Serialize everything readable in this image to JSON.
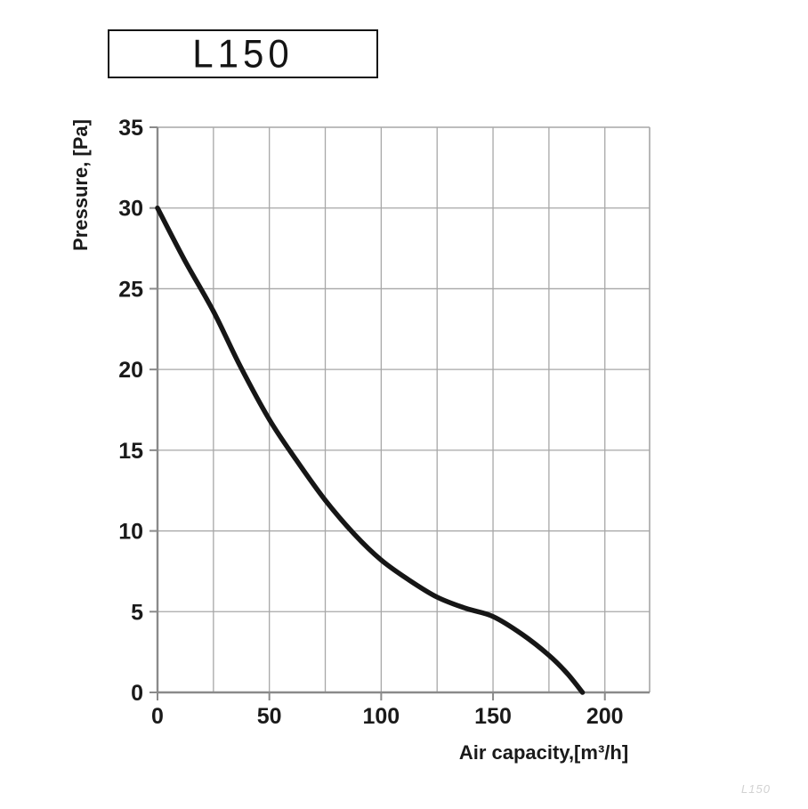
{
  "title_box": {
    "label": "L150"
  },
  "watermark": "L150",
  "chart_data": {
    "type": "line",
    "title": "L150",
    "xlabel": "Air capacity,[m³/h]",
    "ylabel": "Pressure, [Pa]",
    "xlim": [
      0,
      220
    ],
    "ylim": [
      0,
      35
    ],
    "x_major_ticks": [
      0,
      50,
      100,
      150,
      200
    ],
    "y_major_ticks": [
      0,
      5,
      10,
      15,
      20,
      25,
      30,
      35
    ],
    "x_grid_step": 25,
    "y_grid_step": 5,
    "grid": true,
    "legend": "none",
    "series": [
      {
        "name": "L150",
        "points": [
          [
            0,
            30
          ],
          [
            12,
            26.8
          ],
          [
            25,
            23.6
          ],
          [
            37,
            20.2
          ],
          [
            50,
            16.9
          ],
          [
            62,
            14.4
          ],
          [
            75,
            11.9
          ],
          [
            88,
            9.8
          ],
          [
            100,
            8.2
          ],
          [
            112,
            7.0
          ],
          [
            125,
            5.9
          ],
          [
            138,
            5.2
          ],
          [
            150,
            4.7
          ],
          [
            163,
            3.6
          ],
          [
            175,
            2.3
          ],
          [
            183,
            1.2
          ],
          [
            190,
            0
          ]
        ]
      }
    ],
    "colors": {
      "curve": "#161616",
      "grid": "#a7a7a7",
      "axis": "#8a8a8a",
      "tick_text": "#1a1a1a",
      "title_border": "#141414",
      "watermark": "#d2d2d2"
    }
  }
}
